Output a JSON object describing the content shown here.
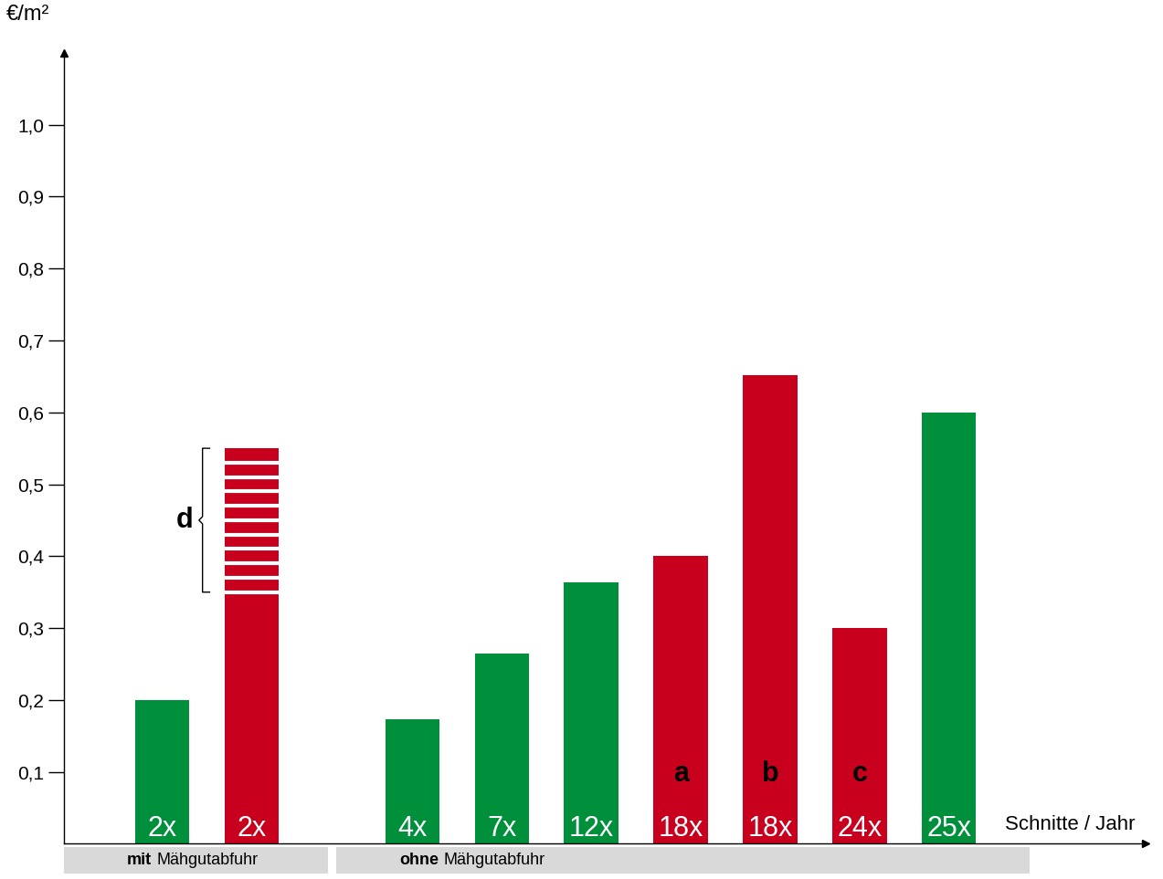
{
  "chart_data": {
    "type": "bar",
    "y_label": "€/m²",
    "x_label": "Schnitte / Jahr",
    "ylim": [
      0,
      1.1
    ],
    "yticks": [
      {
        "value": 0.1,
        "label": "0,1"
      },
      {
        "value": 0.2,
        "label": "0,2"
      },
      {
        "value": 0.3,
        "label": "0,3"
      },
      {
        "value": 0.4,
        "label": "0,4"
      },
      {
        "value": 0.5,
        "label": "0,5"
      },
      {
        "value": 0.6,
        "label": "0,6"
      },
      {
        "value": 0.7,
        "label": "0,7"
      },
      {
        "value": 0.8,
        "label": "0,8"
      },
      {
        "value": 0.9,
        "label": "0,9"
      },
      {
        "value": 1.0,
        "label": "1,0"
      }
    ],
    "groups": [
      {
        "label": "mit Mähgutabfuhr",
        "categories": [
          "2x",
          "2x"
        ],
        "values": [
          0.2,
          0.55
        ],
        "colors": [
          "#00903c",
          "#c8001e"
        ],
        "notes": [
          null,
          null
        ],
        "ranges": [
          null,
          {
            "label": "d",
            "low": 0.35,
            "high": 0.55
          }
        ]
      },
      {
        "label": "ohne Mähgutabfuhr",
        "categories": [
          "4x",
          "7x",
          "12x",
          "18x",
          "18x",
          "24x",
          "25x"
        ],
        "values": [
          0.173,
          0.265,
          0.363,
          0.4,
          0.652,
          0.3,
          0.6
        ],
        "colors": [
          "#00903c",
          "#00903c",
          "#00903c",
          "#c8001e",
          "#c8001e",
          "#c8001e",
          "#00903c"
        ],
        "notes": [
          null,
          null,
          null,
          "a",
          "b",
          "c",
          null
        ],
        "ranges": [
          null,
          null,
          null,
          null,
          null,
          null,
          null
        ]
      }
    ]
  }
}
